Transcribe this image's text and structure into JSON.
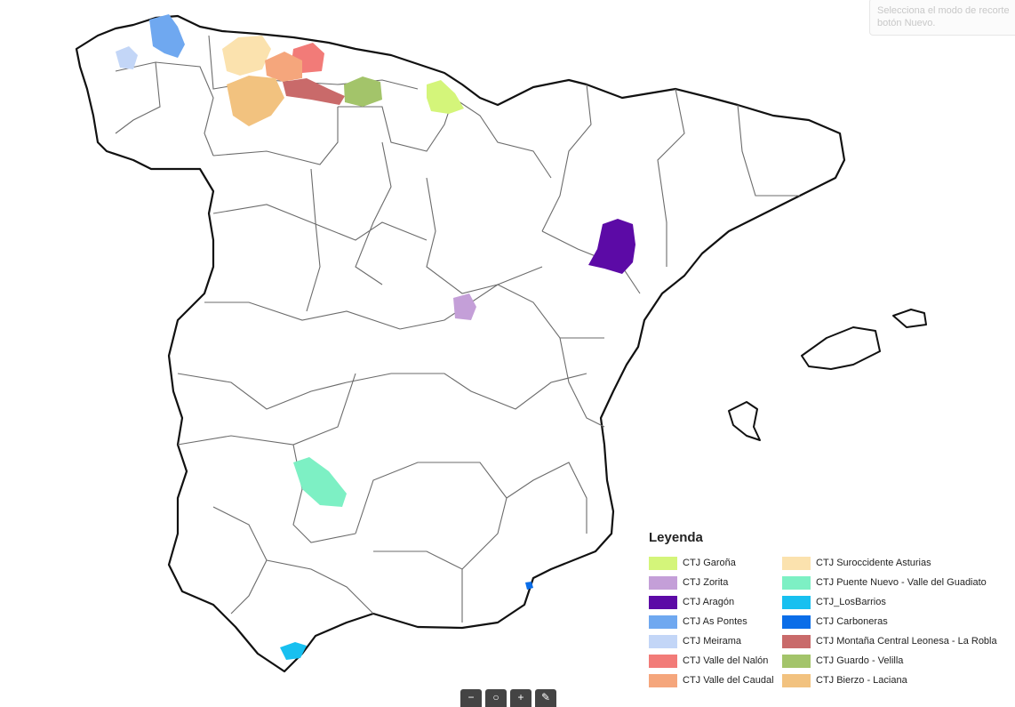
{
  "tooltip": {
    "line1": "Selecciona el modo de recorte",
    "line2": "botón Nuevo."
  },
  "legend": {
    "title": "Leyenda",
    "items": [
      {
        "label": "CTJ Garoña",
        "color": "#d4f57a"
      },
      {
        "label": "CTJ Zorita",
        "color": "#c49fd8"
      },
      {
        "label": "CTJ Aragón",
        "color": "#5c0aa6"
      },
      {
        "label": "CTJ As Pontes",
        "color": "#6fa8f0"
      },
      {
        "label": "CTJ Meirama",
        "color": "#c3d6f7"
      },
      {
        "label": "CTJ Valle del Nalón",
        "color": "#f27b78"
      },
      {
        "label": "CTJ Valle del Caudal",
        "color": "#f5a67c"
      },
      {
        "label": "CTJ Suroccidente Asturias",
        "color": "#fbe2ae"
      },
      {
        "label": "CTJ Puente Nuevo - Valle del Guadiato",
        "color": "#7df0c4"
      },
      {
        "label": "CTJ_LosBarrios",
        "color": "#18c0f0"
      },
      {
        "label": "CTJ Carboneras",
        "color": "#0a6de8"
      },
      {
        "label": "CTJ Montaña Central Leonesa - La Robla",
        "color": "#c96a6a"
      },
      {
        "label": "CTJ Guardo - Velilla",
        "color": "#a3c46a"
      },
      {
        "label": "CTJ Bierzo - Laciana",
        "color": "#f2c27f"
      }
    ]
  },
  "toolbar": {
    "buttons": [
      {
        "icon": "minus-icon",
        "glyph": "−"
      },
      {
        "icon": "search-icon",
        "glyph": "○"
      },
      {
        "icon": "plus-icon",
        "glyph": "+"
      },
      {
        "icon": "pen-icon",
        "glyph": "✎"
      }
    ]
  }
}
